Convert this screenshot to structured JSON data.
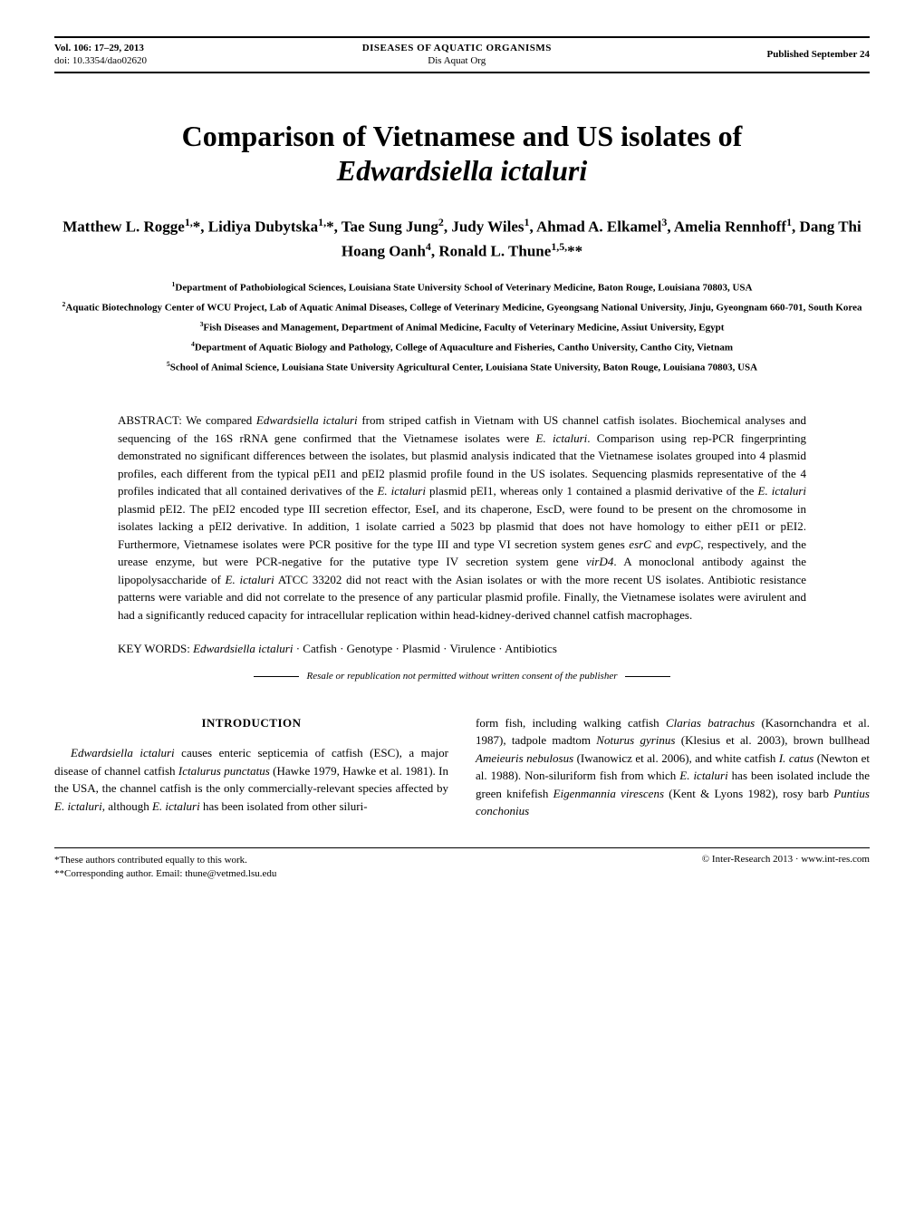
{
  "header": {
    "vol": "Vol. 106: 17–29, 2013",
    "doi": "doi: 10.3354/dao02620",
    "journal_full": "DISEASES OF AQUATIC ORGANISMS",
    "journal_short": "Dis Aquat Org",
    "pub_date": "Published September 24"
  },
  "title": {
    "line1": "Comparison of Vietnamese and US isolates of",
    "line2_italic": "Edwardsiella ictaluri"
  },
  "authors": "Matthew L. Rogge<sup>1,</sup>*, Lidiya Dubytska<sup>1,</sup>*, Tae Sung Jung<sup>2</sup>, Judy Wiles<sup>1</sup>, Ahmad A. Elkamel<sup>3</sup>, Amelia Rennhoff<sup>1</sup>, Dang Thi Hoang Oanh<sup>4</sup>, Ronald L. Thune<sup>1,5,</sup>**",
  "affiliations": {
    "a1": "<sup>1</sup>Department of Pathobiological Sciences, Louisiana State University School of Veterinary Medicine, Baton Rouge, Louisiana 70803, USA",
    "a2": "<sup>2</sup>Aquatic Biotechnology Center of WCU Project, Lab of Aquatic Animal Diseases, College of Veterinary Medicine, Gyeongsang National University, Jinju, Gyeongnam 660-701, South Korea",
    "a3": "<sup>3</sup>Fish Diseases and Management, Department of Animal Medicine, Faculty of Veterinary Medicine, Assiut University, Egypt",
    "a4": "<sup>4</sup>Department of Aquatic Biology and Pathology, College of Aquaculture and Fisheries, Cantho University, Cantho City, Vietnam",
    "a5": "<sup>5</sup>School of Animal Science, Louisiana State University Agricultural Center, Louisiana State University, Baton Rouge, Louisiana 70803, USA"
  },
  "abstract": {
    "label": "ABSTRACT:",
    "text": " We compared <i>Edwardsiella ictaluri</i> from striped catfish in Vietnam with US channel catfish isolates. Biochemical analyses and sequencing of the 16S rRNA gene confirmed that the Vietnamese isolates were <i>E. ictaluri</i>. Comparison using rep-PCR fingerprinting demonstrated no significant differences between the isolates, but plasmid analysis indicated that the Vietnamese isolates grouped into 4 plasmid profiles, each different from the typical pEI1 and pEI2 plasmid profile found in the US isolates. Sequencing plasmids representative of the 4 profiles indicated that all contained derivatives of the <i>E. ictaluri</i> plasmid pEI1, whereas only 1 contained a plasmid derivative of the <i>E. ictaluri</i> plasmid pEI2. The pEI2 encoded type III secretion effector, EseI, and its chaperone, EscD, were found to be present on the chromosome in isolates lacking a pEI2 derivative. In addition, 1 isolate carried a 5023 bp plasmid that does not have homology to either pEI1 or pEI2. Furthermore, Vietnamese isolates were PCR positive for the type III and type VI secretion system genes <i>esrC</i> and <i>evpC</i>, respectively, and the urease enzyme, but were PCR-negative for the putative type IV secretion system gene <i>virD4</i>. A monoclonal antibody against the lipopolysaccharide of <i>E. ictaluri</i> ATCC 33202 did not react with the Asian isolates or with the more recent US isolates. Antibiotic resistance patterns were variable and did not correlate to the presence of any particular plasmid profile. Finally, the Vietnamese isolates were avirulent and had a significantly reduced capacity for intracellular replication within head-kidney-derived channel catfish macrophages."
  },
  "keywords": {
    "label": "KEY WORDS:",
    "text": "  <i>Edwardsiella ictaluri</i> · Catfish · Genotype · Plasmid · Virulence · Antibiotics"
  },
  "resale": "Resale or republication not permitted without written consent of the publisher",
  "intro": {
    "heading": "INTRODUCTION",
    "col1": "<i>Edwardsiella ictaluri</i> causes enteric septicemia of catfish (ESC), a major disease of channel catfish <i>Ictalurus punctatus</i> (Hawke 1979, Hawke et al. 1981). In the USA, the channel catfish is the only commercially-relevant species affected by <i>E. ictaluri</i>, although <i>E. ictaluri</i> has been isolated from other siluri-",
    "col2": "form fish, including walking catfish <i>Clarias batrachus</i> (Kasornchandra et al. 1987), tadpole madtom <i>Noturus gyrinus</i> (Klesius et al. 2003), brown bullhead <i>Ameieuris nebulosus</i> (Iwanowicz et al. 2006), and white catfish <i>I. catus</i> (Newton et al. 1988). Non-siluriform fish from which <i>E. ictaluri</i> has been isolated include the green knifefish <i>Eigenmannia virescens</i> (Kent & Lyons 1982), rosy barb <i>Puntius conchonius</i>"
  },
  "footer": {
    "note1": "*These authors contributed equally to this work.",
    "note2": "**Corresponding author. Email: thune@vetmed.lsu.edu",
    "copyright": "© Inter-Research 2013 · www.int-res.com"
  }
}
